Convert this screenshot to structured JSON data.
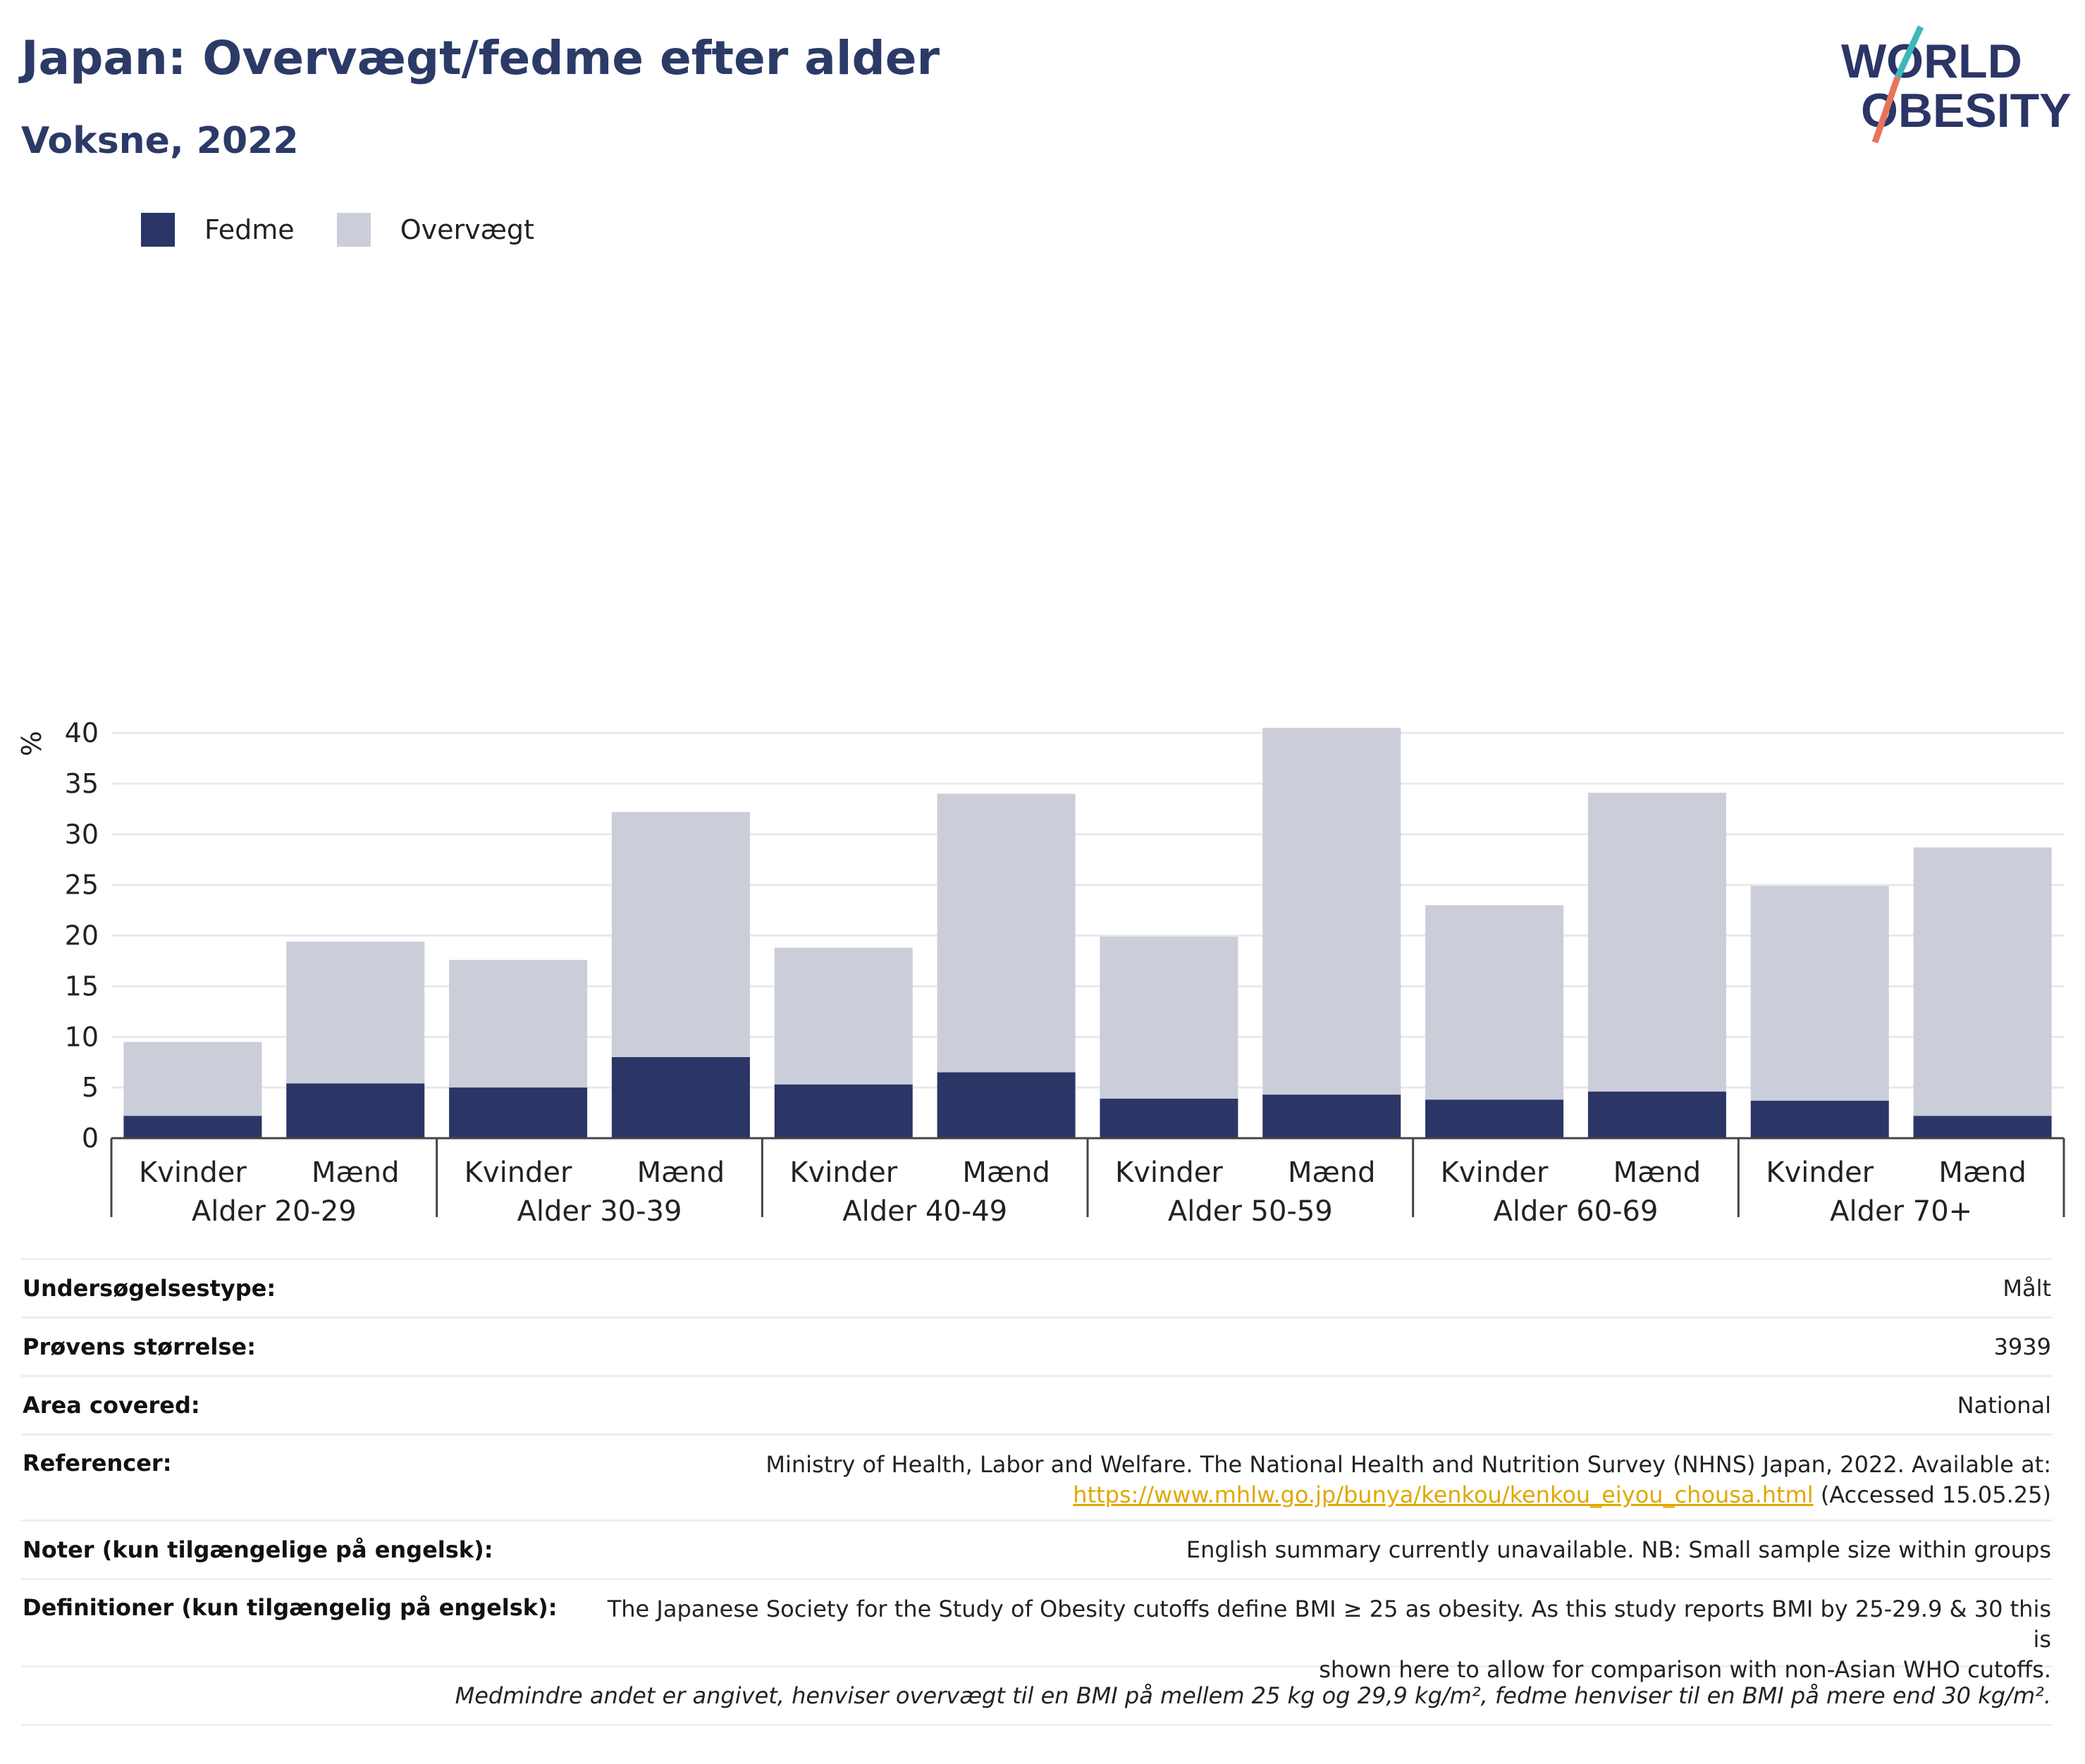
{
  "header": {
    "title": "Japan: Overvægt/fedme efter alder",
    "subtitle": "Voksne, 2022"
  },
  "logo": {
    "line1": "WORLD",
    "line2": "OBESITY"
  },
  "colors": {
    "obesity": "#2b3566",
    "overweight": "#cbcdd9",
    "title": "#2b3a67",
    "link": "#e0a800",
    "logo_teal": "#3fb6b8",
    "logo_coral": "#e8735a"
  },
  "legend": [
    {
      "label": "Fedme",
      "color": "#2b3566"
    },
    {
      "label": "Overvægt",
      "color": "#cbcdd9"
    }
  ],
  "chart_data": {
    "type": "bar",
    "stacked": true,
    "ylabel": "%",
    "ylim": [
      0,
      42
    ],
    "yticks": [
      0,
      5,
      10,
      15,
      20,
      25,
      30,
      35,
      40
    ],
    "grid": true,
    "legend_position": "top-left",
    "groups": [
      "Alder 20-29",
      "Alder 30-39",
      "Alder 40-49",
      "Alder 50-59",
      "Alder 60-69",
      "Alder 70+"
    ],
    "sexes": [
      "Kvinder",
      "Mænd"
    ],
    "series": [
      {
        "name": "Fedme",
        "values": [
          2.2,
          5.4,
          5.0,
          8.0,
          5.3,
          6.5,
          3.9,
          4.3,
          3.8,
          4.6,
          3.7,
          2.2
        ]
      },
      {
        "name": "Overvægt",
        "values": [
          7.3,
          14.0,
          12.6,
          24.2,
          13.5,
          27.5,
          16.0,
          36.2,
          19.2,
          29.5,
          21.2,
          26.5
        ]
      }
    ]
  },
  "info": {
    "rows": [
      {
        "key": "Undersøgelsestype:",
        "value": "Målt"
      },
      {
        "key": "Prøvens størrelse:",
        "value": "3939"
      },
      {
        "key": "Area covered:",
        "value": "National"
      }
    ],
    "references": {
      "key": "Referencer:",
      "text": "Ministry of Health, Labor and Welfare. The National Health and Nutrition Survey (NHNS) Japan, 2022. Available at:",
      "link": "https://www.mhlw.go.jp/bunya/kenkou/kenkou_eiyou_chousa.html",
      "accessed": "(Accessed 15.05.25)"
    },
    "notes": {
      "key": "Noter (kun tilgængelige på engelsk):",
      "value": "English summary currently unavailable. NB: Small sample size within groups"
    },
    "definitions": {
      "key": "Definitioner (kun tilgængelig på engelsk):",
      "line1": "The Japanese Society for the Study of Obesity cutoffs define BMI ≥ 25 as obesity. As this study reports BMI by 25-29.9 & 30 this is",
      "line2": "shown here to allow for comparison with non-Asian WHO cutoffs."
    },
    "footnote": "Medmindre andet er angivet, henviser overvægt til en BMI på mellem 25 kg og 29,9 kg/m², fedme henviser til en BMI på mere end 30 kg/m²."
  }
}
